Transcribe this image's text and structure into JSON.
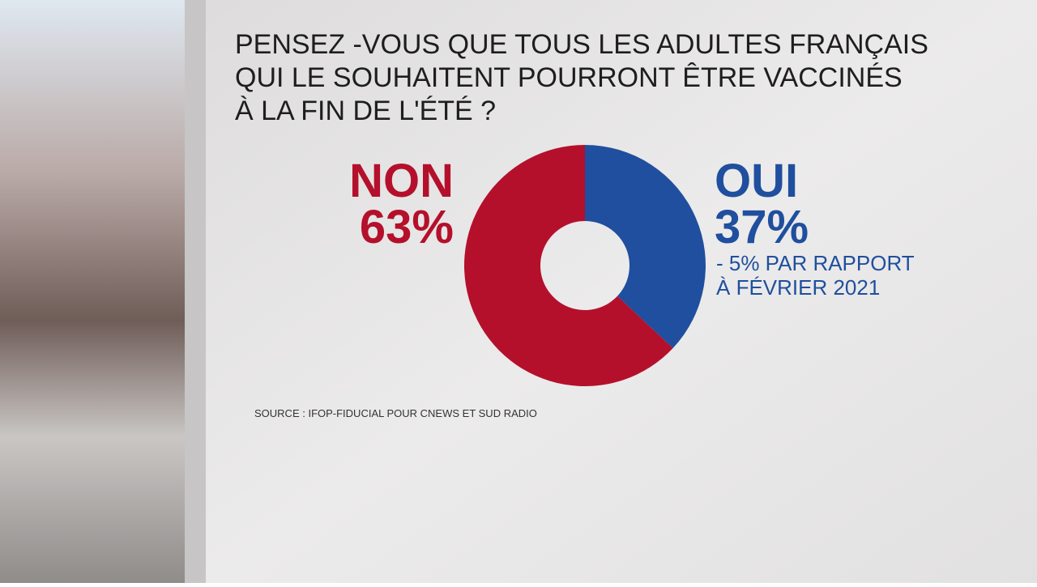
{
  "chart_data": {
    "type": "donut",
    "title": [
      "PENSEZ -VOUS QUE TOUS LES ADULTES FRANÇAIS",
      "QUI LE SOUHAITENT POURRONT ÊTRE VACCINÉS",
      "À LA FIN DE L'ÉTÉ ?"
    ],
    "categories": [
      "OUI",
      "NON"
    ],
    "values": [
      37,
      63
    ],
    "value_labels": [
      "37%",
      "63%"
    ],
    "colors": [
      "#1f4f9e",
      "#b4102c"
    ],
    "annotation": [
      "- 5% PAR RAPPORT",
      "À FÉVRIER 2021"
    ],
    "source": "SOURCE : IFOP-FIDUCIAL POUR CNEWS ET SUD RADIO"
  }
}
